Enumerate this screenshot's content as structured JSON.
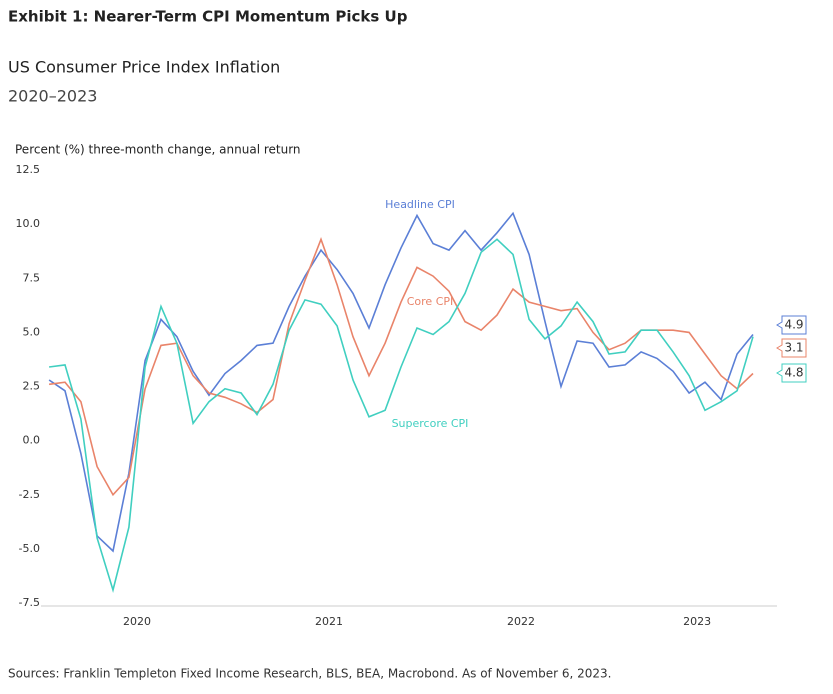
{
  "chart_data": {
    "type": "line",
    "title": "Exhibit 1: Nearer-Term CPI Momentum Picks Up",
    "subtitle": "US Consumer Price Index Inflation",
    "date_range": "2020–2023",
    "y_label": "Percent (%) three-month change, annual return",
    "source": "Sources: Franklin Templeton Fixed Income Research, BLS, BEA, Macrobond. As of November 6, 2023.",
    "x": [
      2020.042,
      2020.125,
      2020.208,
      2020.292,
      2020.375,
      2020.458,
      2020.542,
      2020.625,
      2020.708,
      2020.792,
      2020.875,
      2020.958,
      2021.042,
      2021.125,
      2021.208,
      2021.292,
      2021.375,
      2021.458,
      2021.542,
      2021.625,
      2021.708,
      2021.792,
      2021.875,
      2021.958,
      2022.042,
      2022.125,
      2022.208,
      2022.292,
      2022.375,
      2022.458,
      2022.542,
      2022.625,
      2022.708,
      2022.792,
      2022.875,
      2022.958,
      2023.042,
      2023.125,
      2023.208,
      2023.292,
      2023.375,
      2023.458,
      2023.542,
      2023.625,
      2023.708
    ],
    "series": [
      {
        "name": "Headline CPI",
        "color": "#5b7fd6",
        "values": [
          2.8,
          2.3,
          -0.6,
          -4.4,
          -5.1,
          -1.5,
          3.7,
          5.6,
          4.8,
          3.2,
          2.1,
          3.1,
          3.7,
          4.4,
          4.5,
          6.2,
          7.6,
          8.8,
          7.9,
          6.8,
          5.2,
          7.2,
          8.9,
          10.4,
          9.1,
          8.8,
          9.7,
          8.8,
          9.6,
          10.5,
          8.6,
          5.5,
          2.5,
          4.6,
          4.5,
          3.4,
          3.5,
          4.1,
          3.8,
          3.2,
          2.2,
          2.7,
          1.9,
          4.0,
          4.9
        ]
      },
      {
        "name": "Core CPI",
        "color": "#e9846a",
        "values": [
          2.6,
          2.7,
          1.8,
          -1.2,
          -2.5,
          -1.7,
          2.4,
          4.4,
          4.5,
          3.0,
          2.2,
          2.0,
          1.7,
          1.3,
          1.9,
          5.4,
          7.4,
          9.3,
          7.2,
          4.8,
          3.0,
          4.5,
          6.4,
          8.0,
          7.6,
          6.9,
          5.5,
          5.1,
          5.8,
          7.0,
          6.4,
          6.2,
          6.0,
          6.1,
          5.0,
          4.2,
          4.5,
          5.1,
          5.1,
          5.1,
          5.0,
          4.0,
          3.0,
          2.4,
          3.1
        ]
      },
      {
        "name": "Supercore CPI",
        "color": "#40cfc0",
        "values": [
          3.4,
          3.5,
          1.0,
          -4.5,
          -6.9,
          -4.0,
          3.4,
          6.2,
          4.5,
          0.8,
          1.8,
          2.4,
          2.2,
          1.2,
          2.6,
          5.1,
          6.5,
          6.3,
          5.3,
          2.8,
          1.1,
          1.4,
          3.4,
          5.2,
          4.9,
          5.5,
          6.8,
          8.7,
          9.3,
          8.6,
          5.6,
          4.7,
          5.3,
          6.4,
          5.5,
          4.0,
          4.1,
          5.1,
          5.1,
          4.1,
          3.0,
          1.4,
          1.8,
          2.3,
          4.8
        ]
      }
    ],
    "xlim": [
      2020,
      2023.833
    ],
    "xticks": [
      {
        "value": 2020.5,
        "label": "2020"
      },
      {
        "value": 2021.5,
        "label": "2021"
      },
      {
        "value": 2022.5,
        "label": "2022"
      },
      {
        "value": 2023.417,
        "label": "2023"
      }
    ],
    "ylim": [
      -7.5,
      12.5
    ],
    "yticks": [
      {
        "value": -7.5,
        "label": "-7.5"
      },
      {
        "value": -5,
        "label": "-5.0"
      },
      {
        "value": -2.5,
        "label": "-2.5"
      },
      {
        "value": 0,
        "label": "0.0"
      },
      {
        "value": 2.5,
        "label": "2.5"
      },
      {
        "value": 5,
        "label": "5.0"
      },
      {
        "value": 7.5,
        "label": "7.5"
      },
      {
        "value": 10,
        "label": "10.0"
      },
      {
        "value": 12.5,
        "label": "12.5"
      }
    ],
    "grid": false
  }
}
